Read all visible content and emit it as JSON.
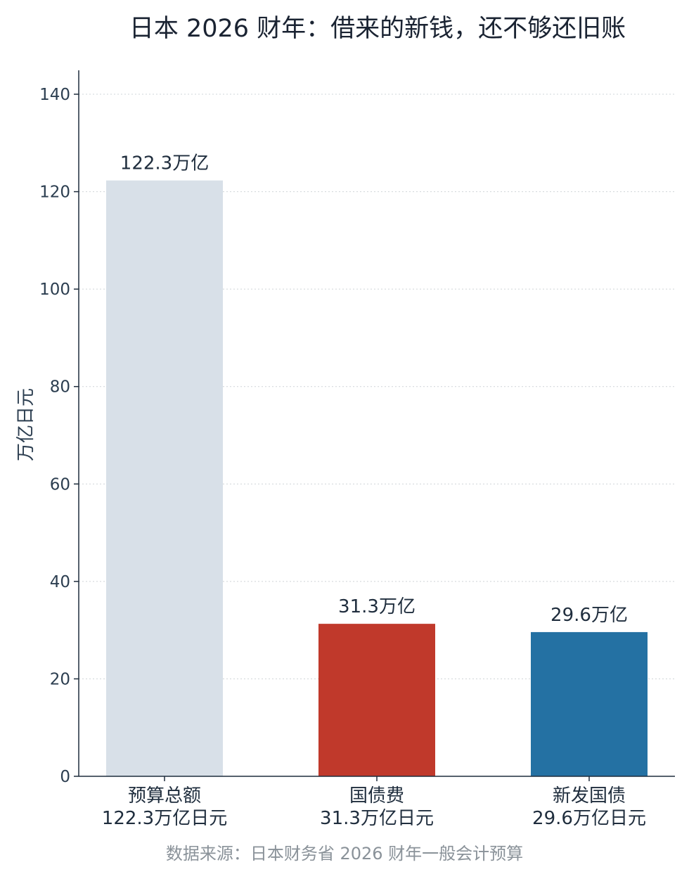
{
  "chart_data": {
    "type": "bar",
    "title": "日本 2026 财年：借来的新钱，还不够还旧账",
    "ylabel": "万亿日元",
    "ylim": [
      0,
      145
    ],
    "yticks": [
      0,
      20,
      40,
      60,
      80,
      100,
      120,
      140
    ],
    "grid": true,
    "categories": [
      {
        "line1": "预算总额",
        "line2": "122.3万亿日元"
      },
      {
        "line1": "国债费",
        "line2": "31.3万亿日元"
      },
      {
        "line1": "新发国债",
        "line2": "29.6万亿日元"
      }
    ],
    "values": [
      122.3,
      31.3,
      29.6
    ],
    "data_labels": [
      "122.3万亿",
      "31.3万亿",
      "29.6万亿"
    ],
    "colors": [
      "#d8e0e8",
      "#c0392b",
      "#2471a3"
    ],
    "source": "数据来源：日本财务省 2026 财年一般会计预算"
  }
}
